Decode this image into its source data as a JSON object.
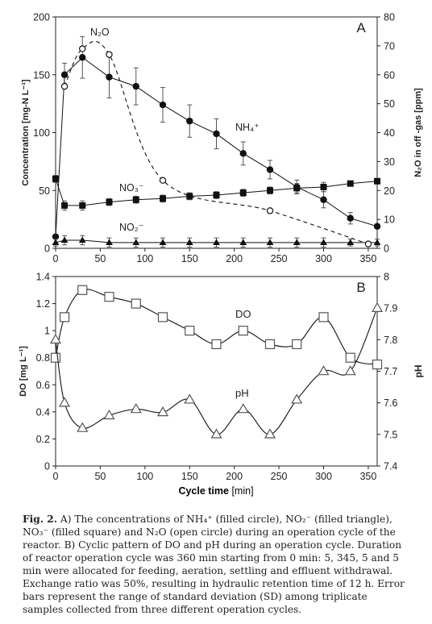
{
  "figure": {
    "xlabel_main": "Cycle time",
    "xlabel_unit": "[min]"
  },
  "chart_data": [
    {
      "type": "line",
      "panel_label": "A",
      "xlim": [
        0,
        360
      ],
      "x_ticks": [
        0,
        50,
        100,
        150,
        200,
        250,
        300,
        350
      ],
      "ylabel_left": "Concentration [mg-N L⁻¹]",
      "ylim_left": [
        0,
        200
      ],
      "y_ticks_left": [
        0,
        50,
        100,
        150,
        200
      ],
      "ylabel_right": "N₂O in off -gas [ppm]",
      "ylim_right": [
        0,
        80
      ],
      "y_ticks_right": [
        0,
        10,
        20,
        30,
        40,
        50,
        60,
        70,
        80
      ],
      "series": [
        {
          "name": "NH₄⁺",
          "axis": "left",
          "marker": "filled-circle",
          "line": "solid",
          "x": [
            0,
            10,
            30,
            60,
            90,
            120,
            150,
            180,
            210,
            240,
            270,
            300,
            330,
            360
          ],
          "y": [
            10,
            150,
            165,
            148,
            140,
            124,
            110,
            99,
            82,
            68,
            53,
            42,
            26,
            19
          ],
          "err": [
            0,
            10,
            18,
            18,
            16,
            15,
            14,
            13,
            10,
            8,
            6,
            7,
            5,
            0
          ]
        },
        {
          "name": "NO₃⁻",
          "axis": "left",
          "marker": "filled-square",
          "line": "solid",
          "x": [
            0,
            10,
            30,
            60,
            90,
            120,
            150,
            180,
            210,
            240,
            270,
            300,
            330,
            360
          ],
          "y": [
            60,
            37,
            37,
            40,
            42,
            43,
            45,
            46,
            48,
            50,
            52,
            53,
            56,
            58
          ],
          "err": [
            3,
            4,
            4,
            3,
            3,
            3,
            3,
            3,
            3,
            3,
            4,
            4,
            2,
            2
          ]
        },
        {
          "name": "NO₂⁻",
          "axis": "left",
          "marker": "filled-triangle",
          "line": "solid",
          "x": [
            0,
            10,
            30,
            60,
            90,
            120,
            150,
            180,
            210,
            240,
            270,
            300,
            330,
            360
          ],
          "y": [
            5,
            7,
            7,
            5,
            5,
            5,
            5,
            5,
            5,
            5,
            5,
            5,
            5,
            5
          ],
          "err": [
            3,
            4,
            4,
            4,
            4,
            4,
            4,
            4,
            4,
            4,
            4,
            4,
            3,
            3
          ]
        },
        {
          "name": "N₂O",
          "axis": "right",
          "marker": "open-circle",
          "line": "dashed",
          "x": [
            10,
            30,
            60,
            120,
            240,
            350
          ],
          "y": [
            56,
            69,
            67,
            23.5,
            13,
            1.5
          ]
        }
      ]
    },
    {
      "type": "line",
      "panel_label": "B",
      "xlim": [
        0,
        360
      ],
      "x_ticks": [
        0,
        50,
        100,
        150,
        200,
        250,
        300,
        350
      ],
      "ylabel_left": "DO [mg L⁻¹]",
      "ylim_left": [
        0,
        1.4
      ],
      "y_ticks_left": [
        "0",
        "0.2",
        "0.4",
        "0.6",
        "0.8",
        "1",
        "1.2",
        "1.4"
      ],
      "ylabel_right": "pH",
      "ylim_right": [
        7.4,
        8.0
      ],
      "y_ticks_right": [
        "7.4",
        "7.5",
        "7.6",
        "7.7",
        "7.8",
        "7.9",
        "8"
      ],
      "series": [
        {
          "name": "DO",
          "axis": "left",
          "marker": "open-square",
          "x": [
            0,
            10,
            30,
            60,
            90,
            120,
            150,
            180,
            210,
            240,
            270,
            300,
            330,
            360
          ],
          "y": [
            0.8,
            1.1,
            1.3,
            1.25,
            1.2,
            1.1,
            1.0,
            0.9,
            1.0,
            0.9,
            0.9,
            1.1,
            0.8,
            0.75
          ]
        },
        {
          "name": "pH",
          "axis": "right",
          "marker": "open-triangle",
          "x": [
            0,
            10,
            30,
            60,
            90,
            120,
            150,
            180,
            210,
            240,
            270,
            300,
            330,
            360
          ],
          "y": [
            7.8,
            7.6,
            7.52,
            7.56,
            7.58,
            7.57,
            7.61,
            7.5,
            7.58,
            7.5,
            7.61,
            7.7,
            7.7,
            7.9
          ]
        }
      ]
    }
  ],
  "caption": {
    "label": "Fig. 2.",
    "text": "A) The concentrations of NH₄⁺ (filled circle), NO₂⁻ (filled triangle), NO₃⁻ (filled square) and N₂O (open circle) during an operation cycle of the reactor. B) Cyclic pattern of DO and pH during an operation cycle. Duration of reactor operation cycle was 360 min starting from 0 min: 5, 345, 5 and 5 min were allocated for feeding, aeration, settling and effluent withdrawal. Exchange ratio was 50%, resulting in hydraulic retention time of 12 h. Error bars represent the range of standard deviation (SD) among triplicate samples collected from three different operation cycles."
  }
}
